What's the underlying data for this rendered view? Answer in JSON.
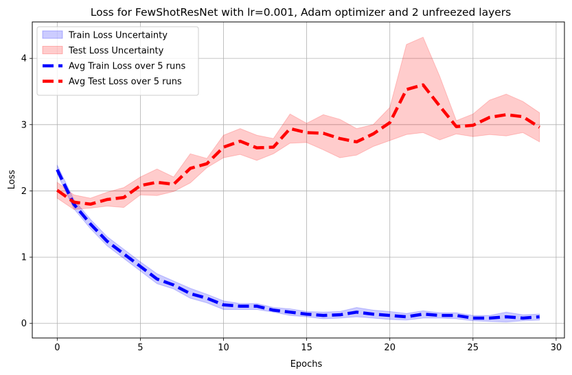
{
  "chart_data": {
    "type": "line",
    "title": "Loss for FewShotResNet with lr=0.001, Adam optimizer and 2 unfreezed layers",
    "xlabel": "Epochs",
    "ylabel": "Loss",
    "xlim": [
      -1.5,
      30.5
    ],
    "ylim": [
      -0.22,
      4.55
    ],
    "xticks": [
      0,
      5,
      10,
      15,
      20,
      25,
      30
    ],
    "yticks": [
      0,
      1,
      2,
      3,
      4
    ],
    "grid": true,
    "legend_position": "top-left",
    "x": [
      0,
      1,
      2,
      3,
      4,
      5,
      6,
      7,
      8,
      9,
      10,
      11,
      12,
      13,
      14,
      15,
      16,
      17,
      18,
      19,
      20,
      21,
      22,
      23,
      24,
      25,
      26,
      27,
      28,
      29
    ],
    "bands": [
      {
        "name": "Train Loss Uncertainty",
        "color": "#0000ff",
        "lower": [
          2.26,
          1.73,
          1.43,
          1.17,
          0.98,
          0.79,
          0.6,
          0.52,
          0.38,
          0.31,
          0.21,
          0.21,
          0.21,
          0.17,
          0.12,
          0.1,
          0.07,
          0.08,
          0.1,
          0.08,
          0.06,
          0.05,
          0.08,
          0.08,
          0.07,
          0.04,
          0.03,
          0.02,
          0.04,
          0.05
        ],
        "upper": [
          2.39,
          1.87,
          1.57,
          1.31,
          1.12,
          0.93,
          0.75,
          0.64,
          0.53,
          0.44,
          0.34,
          0.3,
          0.3,
          0.24,
          0.22,
          0.18,
          0.17,
          0.18,
          0.24,
          0.2,
          0.18,
          0.15,
          0.19,
          0.16,
          0.16,
          0.12,
          0.12,
          0.17,
          0.13,
          0.14
        ]
      },
      {
        "name": "Test Loss Uncertainty",
        "color": "#ff0000",
        "lower": [
          1.89,
          1.72,
          1.74,
          1.77,
          1.75,
          1.94,
          1.93,
          1.99,
          2.12,
          2.35,
          2.5,
          2.55,
          2.46,
          2.56,
          2.72,
          2.73,
          2.62,
          2.5,
          2.54,
          2.67,
          2.76,
          2.85,
          2.88,
          2.77,
          2.86,
          2.82,
          2.85,
          2.83,
          2.88,
          2.74
        ],
        "upper": [
          2.13,
          1.94,
          1.89,
          1.98,
          2.05,
          2.21,
          2.33,
          2.21,
          2.56,
          2.49,
          2.84,
          2.94,
          2.84,
          2.79,
          3.16,
          3.02,
          3.15,
          3.08,
          2.94,
          3.0,
          3.26,
          4.21,
          4.32,
          3.73,
          3.06,
          3.16,
          3.37,
          3.46,
          3.35,
          3.18
        ]
      }
    ],
    "series": [
      {
        "name": "Avg Train Loss over 5 runs",
        "color": "#0000ff",
        "values": [
          2.32,
          1.8,
          1.5,
          1.24,
          1.05,
          0.86,
          0.67,
          0.58,
          0.45,
          0.38,
          0.28,
          0.26,
          0.26,
          0.2,
          0.17,
          0.14,
          0.12,
          0.13,
          0.17,
          0.14,
          0.12,
          0.1,
          0.14,
          0.12,
          0.12,
          0.08,
          0.08,
          0.1,
          0.08,
          0.1
        ]
      },
      {
        "name": "Avg Test Loss over 5 runs",
        "color": "#ff0000",
        "values": [
          2.01,
          1.83,
          1.8,
          1.87,
          1.9,
          2.08,
          2.13,
          2.1,
          2.34,
          2.41,
          2.66,
          2.75,
          2.65,
          2.66,
          2.94,
          2.88,
          2.87,
          2.79,
          2.74,
          2.86,
          3.03,
          3.53,
          3.6,
          3.28,
          2.97,
          2.99,
          3.11,
          3.15,
          3.12,
          2.96
        ]
      }
    ]
  }
}
